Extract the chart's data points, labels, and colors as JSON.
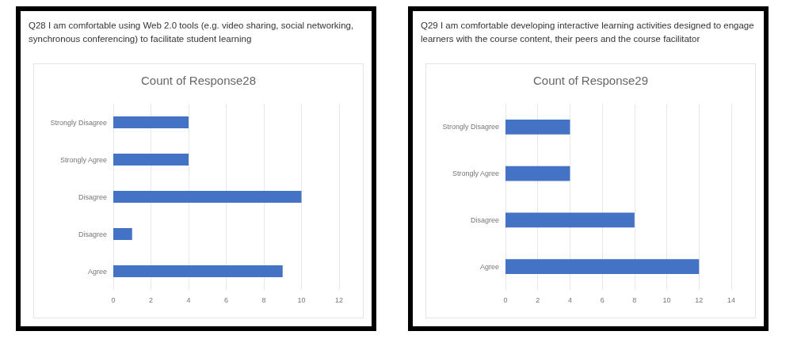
{
  "chart_data": [
    {
      "type": "bar",
      "orientation": "horizontal",
      "title": "Q28 I am comfortable using Web 2.0 tools (e.g. video sharing, social networking, synchronous conferencing) to facilitate student learning",
      "subtitle": "Count of Response28",
      "categories": [
        "Strongly Disagree",
        "Strongly Agree",
        "Disagree",
        "Disagree",
        "Agree"
      ],
      "values": [
        4,
        4,
        10,
        1,
        9
      ],
      "color": "#4472c4",
      "xlim": [
        0,
        12
      ],
      "xticks": [
        0,
        2,
        4,
        6,
        8,
        10,
        12
      ],
      "grid": "x"
    },
    {
      "type": "bar",
      "orientation": "horizontal",
      "title": "Q29 I am comfortable developing interactive learning activities designed to engage learners with the course content, their peers and the course facilitator",
      "subtitle": "Count of Response29",
      "categories": [
        "Strongly Disagree",
        "Strongly Agree",
        "Disagree",
        "Agree"
      ],
      "values": [
        4,
        4,
        8,
        12
      ],
      "color": "#4472c4",
      "xlim": [
        0,
        14
      ],
      "xticks": [
        0,
        2,
        4,
        6,
        8,
        10,
        12,
        14
      ],
      "grid": "x"
    }
  ]
}
